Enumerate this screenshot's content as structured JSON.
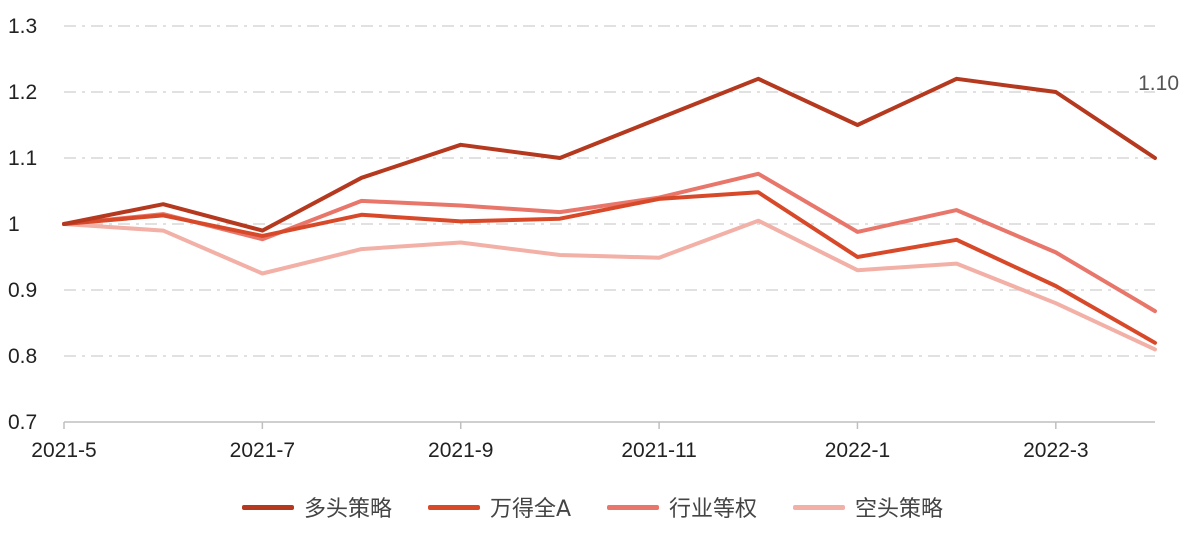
{
  "chart_data": {
    "type": "line",
    "title": "",
    "xlabel": "",
    "ylabel": "",
    "x": [
      "2021-5",
      "2021-6",
      "2021-7",
      "2021-8",
      "2021-9",
      "2021-10",
      "2021-11",
      "2021-12",
      "2022-1",
      "2022-2",
      "2022-3",
      "2022-4"
    ],
    "x_tick_labels": [
      "2021-5",
      "2021-7",
      "2021-9",
      "2021-11",
      "2022-1",
      "2022-3"
    ],
    "y_tick_labels": [
      "0.7",
      "0.8",
      "0.9",
      "1",
      "1.1",
      "1.2",
      "1.3"
    ],
    "y_ticks": [
      0.7,
      0.8,
      0.9,
      1.0,
      1.1,
      1.2,
      1.3
    ],
    "ylim": [
      0.7,
      1.3
    ],
    "grid": "horizontal dash-dot",
    "legend_position": "bottom",
    "series": [
      {
        "name": "多头策略",
        "color": "#b5391f",
        "values": [
          1.0,
          1.03,
          0.99,
          1.07,
          1.12,
          1.1,
          1.16,
          1.22,
          1.15,
          1.22,
          1.2,
          1.1
        ]
      },
      {
        "name": "万得全A",
        "color": "#d8492a",
        "values": [
          1.0,
          1.013,
          0.982,
          1.014,
          1.004,
          1.008,
          1.038,
          1.048,
          0.95,
          0.976,
          0.906,
          0.82
        ]
      },
      {
        "name": "行业等权",
        "color": "#e8766a",
        "values": [
          1.0,
          1.015,
          0.977,
          1.035,
          1.028,
          1.018,
          1.04,
          1.076,
          0.988,
          1.021,
          0.957,
          0.868
        ]
      },
      {
        "name": "空头策略",
        "color": "#f2b0a6",
        "values": [
          1.0,
          0.99,
          0.925,
          0.962,
          0.972,
          0.953,
          0.949,
          1.005,
          0.93,
          0.94,
          0.88,
          0.81
        ]
      }
    ],
    "annotations": [
      {
        "series": "多头策略",
        "x": "2022-4",
        "text": "1.10"
      }
    ]
  }
}
